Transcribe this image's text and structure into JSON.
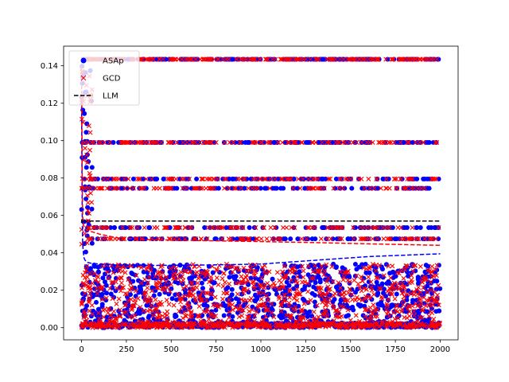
{
  "chart_data": {
    "type": "scatter",
    "title": "",
    "xlabel": "",
    "ylabel": "",
    "xlim": [
      -100,
      2100
    ],
    "ylim": [
      -0.0065,
      0.1505
    ],
    "xticks": [
      0,
      250,
      500,
      750,
      1000,
      1250,
      1500,
      1750,
      2000
    ],
    "xtick_labels": [
      "0",
      "250",
      "500",
      "750",
      "1000",
      "1250",
      "1500",
      "1750",
      "2000"
    ],
    "yticks": [
      0.0,
      0.02,
      0.04,
      0.06,
      0.08,
      0.1,
      0.12,
      0.14
    ],
    "ytick_labels": [
      "0.00",
      "0.02",
      "0.04",
      "0.06",
      "0.08",
      "0.10",
      "0.12",
      "0.14"
    ],
    "grid": false,
    "legend": {
      "placement": "upper-left"
    },
    "discrete_levels": [
      0.1435,
      0.099,
      0.0795,
      0.0745,
      0.0535,
      0.0475
    ],
    "series": [
      {
        "name": "ASAp",
        "kind": "scatter",
        "marker": "circle",
        "color": "#0000ff",
        "x_range": [
          0,
          2000
        ],
        "level_values": [
          0.1435,
          0.099,
          0.0795,
          0.0745,
          0.0535,
          0.0475
        ],
        "dense_band": [
          0.0,
          0.034
        ]
      },
      {
        "name": "GCD",
        "kind": "scatter",
        "marker": "x",
        "color": "#ff0000",
        "x_range": [
          0,
          2000
        ],
        "level_values": [
          0.1435,
          0.099,
          0.0795,
          0.0745,
          0.0535,
          0.0475
        ],
        "dense_band": [
          0.0,
          0.034
        ]
      },
      {
        "name": "LLM",
        "kind": "line",
        "style": "dashed",
        "color": "#000000",
        "x": [
          0,
          2,
          5,
          10,
          20,
          40,
          60,
          100,
          200,
          500,
          1000,
          1500,
          2000
        ],
        "y": [
          0.056,
          0.058,
          0.057,
          0.057,
          0.057,
          0.057,
          0.057,
          0.057,
          0.057,
          0.057,
          0.057,
          0.057,
          0.057
        ]
      }
    ],
    "running_means": [
      {
        "color": "#0000ff",
        "style": "dashed",
        "x": [
          0,
          2,
          4,
          6,
          10,
          15,
          20,
          30,
          50,
          100,
          200,
          400,
          700,
          1000,
          1300,
          1600,
          2000
        ],
        "y": [
          0.125,
          0.09,
          0.06,
          0.045,
          0.04,
          0.037,
          0.036,
          0.035,
          0.0345,
          0.034,
          0.0335,
          0.0333,
          0.0335,
          0.034,
          0.036,
          0.038,
          0.0395
        ]
      },
      {
        "color": "#ff0000",
        "style": "dashed",
        "x": [
          0,
          2,
          4,
          6,
          10,
          15,
          20,
          30,
          50,
          100,
          200,
          400,
          700,
          1000,
          1300,
          1600,
          2000
        ],
        "y": [
          0.14,
          0.11,
          0.08,
          0.06,
          0.055,
          0.054,
          0.053,
          0.052,
          0.0515,
          0.05,
          0.048,
          0.047,
          0.0465,
          0.046,
          0.0455,
          0.0448,
          0.044
        ]
      }
    ]
  }
}
